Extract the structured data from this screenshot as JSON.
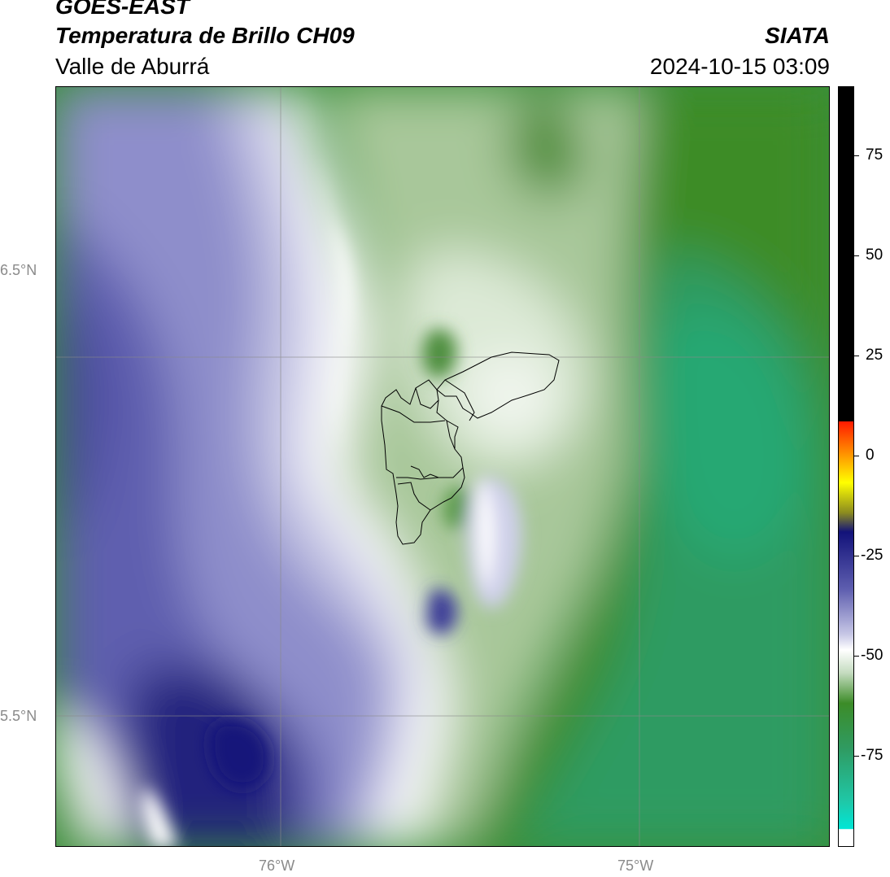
{
  "header": {
    "satellite": "GOES-EAST",
    "product": "Temperatura de Brillo CH09",
    "region": "Valle de Aburrá",
    "brand": "SIATA",
    "datetime": "2024-10-15 03:09"
  },
  "map": {
    "lat_labels": [
      "6.5°N",
      "5.5°N"
    ],
    "lon_labels": [
      "76°W",
      "75°W"
    ],
    "gridlines": true,
    "outline": "Valle de Aburrá municipalities"
  },
  "colorbar": {
    "ticks": [
      "75",
      "50",
      "25",
      "0",
      "-25",
      "-50",
      "-75"
    ],
    "range": [
      -95,
      92
    ],
    "colors": {
      "black": "#000000",
      "red": "#ff1a00",
      "orange": "#ff8c00",
      "yellow": "#ffff00",
      "navy": "#12127a",
      "lavender": "#c8c8e6",
      "white": "#ffffff",
      "green": "#3c8c28",
      "teal": "#2fae78",
      "cyan": "#00e6d6"
    }
  }
}
